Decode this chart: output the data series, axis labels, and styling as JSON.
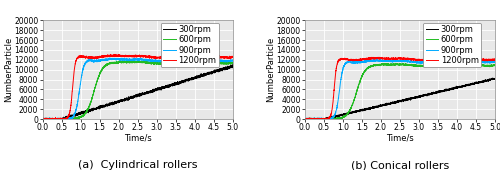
{
  "subplot_a_title": "(a)  Cylindrical rollers",
  "subplot_b_title": "(b) Conical rollers",
  "xlabel": "Time/s",
  "ylabel": "NumberParticle",
  "xlim": [
    0,
    5
  ],
  "ylim": [
    0,
    20000
  ],
  "yticks": [
    0,
    2000,
    4000,
    6000,
    8000,
    10000,
    12000,
    14000,
    16000,
    18000,
    20000
  ],
  "xticks": [
    0,
    0.5,
    1,
    1.5,
    2,
    2.5,
    3,
    3.5,
    4,
    4.5,
    5
  ],
  "legend_labels": [
    "300rpm",
    "600rpm",
    "900rpm",
    "1200rpm"
  ],
  "line_colors": [
    "black",
    "#22bb22",
    "#00aaff",
    "red"
  ],
  "background_color": "#e8e8e8",
  "grid_color": "white",
  "title_fontsize": 8,
  "axis_fontsize": 6,
  "legend_fontsize": 6,
  "tick_fontsize": 5.5,
  "a_300_start": 0.52,
  "a_300_stair_rate": 2400,
  "a_300_plateau": 11000,
  "a_600_start": 0.72,
  "a_600_end_rise": 2.0,
  "a_600_plateau": 11500,
  "a_900_start": 0.65,
  "a_900_end_rise": 1.3,
  "a_900_plateau": 12000,
  "a_1200_start": 0.58,
  "a_1200_end_rise": 1.0,
  "a_1200_plateau": 12700,
  "b_300_start": 0.52,
  "b_300_plateau": 8200,
  "b_600_start": 0.72,
  "b_600_end_rise": 2.0,
  "b_600_plateau": 11000,
  "b_900_start": 0.62,
  "b_900_end_rise": 1.2,
  "b_900_plateau": 11700,
  "b_1200_start": 0.57,
  "b_1200_end_rise": 0.97,
  "b_1200_plateau": 12200
}
